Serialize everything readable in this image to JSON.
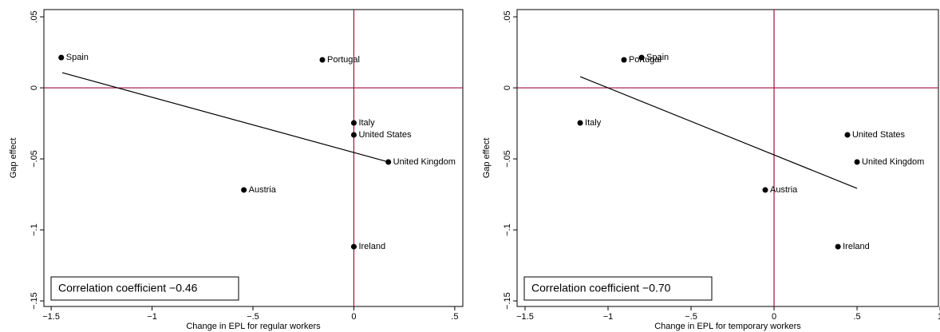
{
  "chart_data": [
    {
      "type": "scatter",
      "xlabel": "Change in EPL for regular workers",
      "ylabel": "Gap effect",
      "annotation": "Correlation coefficient −0.46",
      "labels": [
        "Spain",
        "Portugal",
        "Italy",
        "United States",
        "United Kingdom",
        "Austria",
        "Ireland"
      ],
      "x": [
        -1.45,
        -0.156,
        0,
        0,
        0.171,
        -0.545,
        0
      ],
      "y": [
        0.0213,
        0.0197,
        -0.0247,
        -0.0331,
        -0.0522,
        -0.0719,
        -0.1118
      ],
      "color": "#000000",
      "fit_line": {
        "x": [
          -1.445,
          0.171
        ],
        "y": [
          0.0107,
          -0.0522
        ]
      },
      "hline": 0,
      "vline": 0,
      "reference_color": "#a0103a",
      "xlim": [
        -1.536,
        0.54
      ],
      "ylim": [
        -0.1539,
        0.0551
      ],
      "xticks": [
        {
          "value": -1.5,
          "label": "−1.5"
        },
        {
          "value": -1,
          "label": "−1"
        },
        {
          "value": -0.5,
          "label": "−.5"
        },
        0,
        {
          "value": 0.5,
          "label": ".5"
        }
      ],
      "yticks": [
        {
          "value": -0.15,
          "label": "−.15"
        },
        {
          "value": -0.1,
          "label": "−.1"
        },
        {
          "value": -0.05,
          "label": "−.05"
        },
        0,
        {
          "value": 0.05,
          "label": ".05"
        }
      ]
    },
    {
      "type": "scatter",
      "xlabel": "Change in EPL for temporary workers",
      "ylabel": "Gap effect",
      "annotation": "Correlation coefficient −0.70",
      "labels": [
        "Spain",
        "Portugal",
        "Italy",
        "United States",
        "United Kingdom",
        "Austria",
        "Ireland"
      ],
      "x": [
        -0.798,
        -0.904,
        -1.168,
        0.442,
        0.5,
        -0.053,
        0.385
      ],
      "y": [
        0.0213,
        0.0197,
        -0.0247,
        -0.0331,
        -0.0522,
        -0.0719,
        -0.1118
      ],
      "color": "#000000",
      "fit_line": {
        "x": [
          -1.168,
          0.5
        ],
        "y": [
          0.0079,
          -0.0708
        ]
      },
      "hline": 0,
      "vline": 0,
      "reference_color": "#a0103a",
      "xlim": [
        -1.548,
        0.99
      ],
      "ylim": [
        -0.1539,
        0.0551
      ],
      "xticks": [
        {
          "value": -1.5,
          "label": "−1.5"
        },
        {
          "value": -1,
          "label": "−1"
        },
        {
          "value": -0.5,
          "label": "−.5"
        },
        0,
        {
          "value": 0.5,
          "label": ".5"
        },
        1
      ],
      "yticks": [
        {
          "value": -0.15,
          "label": "−.15"
        },
        {
          "value": -0.1,
          "label": "−.1"
        },
        {
          "value": -0.05,
          "label": "−.05"
        },
        0,
        {
          "value": 0.05,
          "label": ".05"
        }
      ]
    }
  ]
}
